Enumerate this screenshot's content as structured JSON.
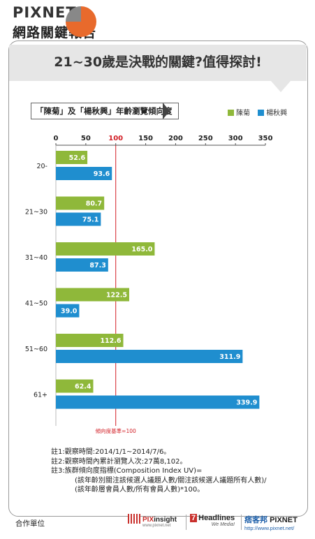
{
  "brand": {
    "name": "PIXNET",
    "subtitle": "網路關鍵報告"
  },
  "headline": "21~30歲是決戰的關鍵?值得探討!",
  "colors": {
    "green": "#8fb83a",
    "blue": "#1f8ecf",
    "reference": "#d21f26",
    "band": "#e6e6e6"
  },
  "chart_data": {
    "type": "bar",
    "orientation": "horizontal",
    "title": "「陳菊」及「楊秋興」年齡瀏覽傾向度",
    "categories": [
      "20-",
      "21~30",
      "31~40",
      "41~50",
      "51~60",
      "61+"
    ],
    "series": [
      {
        "name": "陳菊",
        "color": "#8fb83a",
        "values": [
          52.6,
          80.7,
          165.0,
          122.5,
          112.6,
          62.4
        ],
        "labels": [
          "52.6",
          "80.7",
          "165.0",
          "122.5",
          "112.6",
          "62.4"
        ]
      },
      {
        "name": "楊秋興",
        "color": "#1f8ecf",
        "values": [
          93.6,
          75.1,
          87.3,
          39.0,
          311.9,
          339.9
        ],
        "labels": [
          "93.6",
          "75.1",
          "87.3",
          "39.0",
          "311.9",
          "339.9"
        ]
      }
    ],
    "xlim": [
      0,
      350
    ],
    "ticks": [
      0,
      50,
      100,
      150,
      200,
      250,
      300,
      350
    ],
    "tick_labels": [
      "0",
      "50",
      "100",
      "150",
      "200",
      "250",
      "300",
      "350"
    ],
    "reference_line": {
      "value": 100,
      "label": "傾向度基準=100"
    },
    "legend_position": "top-right",
    "grid": false
  },
  "notes": {
    "n1": "註1:觀察時間:2014/1/1~2014/7/6。",
    "n2": "註2:觀察時間內累計瀏覽人次:27萬8,102。",
    "n3": "註3:族群傾向度指標(Composition Index UV)=",
    "n3a": "(該年齡別關注該候選人議題人數/關注該候選人議題所有人數)/",
    "n3b": "(該年齡層會員人數/所有會員人數)*100。"
  },
  "footer": {
    "label": "合作單位",
    "partners": {
      "pix_a": "PIX",
      "pix_b": "insight",
      "pix_url": "www.pixnet.net",
      "h_num": "7",
      "h_name": "Headlines",
      "h_tag": "We Media!",
      "px_cn": "痞客邦",
      "px_en": "PIXNET",
      "px_url": "http://www.pixnet.net/"
    }
  }
}
